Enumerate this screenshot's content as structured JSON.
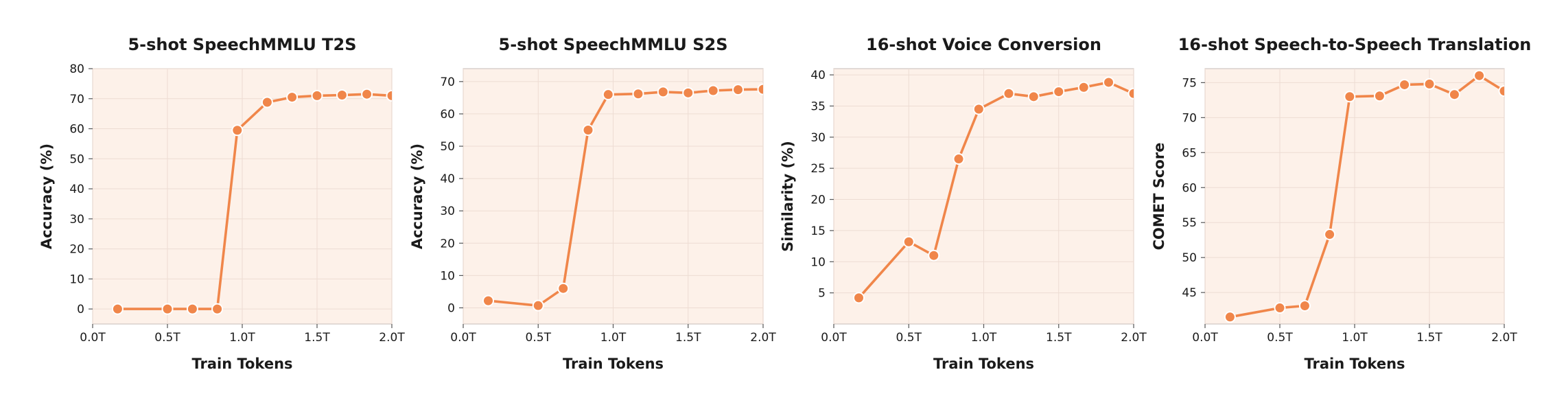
{
  "colors": {
    "series": "#f0864a",
    "plot_bg": "#fdf1e9"
  },
  "chart_data": [
    {
      "type": "line",
      "title": "5-shot SpeechMMLU T2S",
      "xlabel": "Train Tokens",
      "ylabel": "Accuracy (%)",
      "xlim": [
        0,
        2.0
      ],
      "ylim": [
        -5,
        80
      ],
      "xticks": [
        0,
        0.5,
        1.0,
        1.5,
        2.0
      ],
      "xtick_labels": [
        "0.0T",
        "0.5T",
        "1.0T",
        "1.5T",
        "2.0T"
      ],
      "yticks": [
        0,
        10,
        20,
        30,
        40,
        50,
        60,
        70,
        80
      ],
      "ytick_labels": [
        "0",
        "10",
        "20",
        "30",
        "40",
        "50",
        "60",
        "70",
        "80"
      ],
      "grid": true,
      "x": [
        0.167,
        0.5,
        0.667,
        0.833,
        0.967,
        1.167,
        1.333,
        1.5,
        1.667,
        1.833,
        2.0
      ],
      "y": [
        0,
        0,
        0,
        0,
        59.5,
        68.8,
        70.5,
        71.0,
        71.2,
        71.5,
        71.0
      ]
    },
    {
      "type": "line",
      "title": "5-shot SpeechMMLU S2S",
      "xlabel": "Train Tokens",
      "ylabel": "Accuracy (%)",
      "xlim": [
        0,
        2.0
      ],
      "ylim": [
        -5,
        74
      ],
      "xticks": [
        0,
        0.5,
        1.0,
        1.5,
        2.0
      ],
      "xtick_labels": [
        "0.0T",
        "0.5T",
        "1.0T",
        "1.5T",
        "2.0T"
      ],
      "yticks": [
        0,
        10,
        20,
        30,
        40,
        50,
        60,
        70
      ],
      "ytick_labels": [
        "0",
        "10",
        "20",
        "30",
        "40",
        "50",
        "60",
        "70"
      ],
      "grid": true,
      "x": [
        0.167,
        0.5,
        0.667,
        0.833,
        0.967,
        1.167,
        1.333,
        1.5,
        1.667,
        1.833,
        2.0
      ],
      "y": [
        2.2,
        0.7,
        6.0,
        55.0,
        66.0,
        66.2,
        66.8,
        66.5,
        67.2,
        67.5,
        67.6
      ]
    },
    {
      "type": "line",
      "title": "16-shot Voice Conversion",
      "xlabel": "Train Tokens",
      "ylabel": "Similarity (%)",
      "xlim": [
        0,
        2.0
      ],
      "ylim": [
        0,
        41
      ],
      "xticks": [
        0,
        0.5,
        1.0,
        1.5,
        2.0
      ],
      "xtick_labels": [
        "0.0T",
        "0.5T",
        "1.0T",
        "1.5T",
        "2.0T"
      ],
      "yticks": [
        5,
        10,
        15,
        20,
        25,
        30,
        35,
        40
      ],
      "ytick_labels": [
        "5",
        "10",
        "15",
        "20",
        "25",
        "30",
        "35",
        "40"
      ],
      "grid": true,
      "x": [
        0.167,
        0.5,
        0.667,
        0.833,
        0.967,
        1.167,
        1.333,
        1.5,
        1.667,
        1.833,
        2.0
      ],
      "y": [
        4.2,
        13.2,
        11.0,
        26.5,
        34.5,
        37.0,
        36.5,
        37.3,
        38.0,
        38.8,
        37.0
      ]
    },
    {
      "type": "line",
      "title": "16-shot Speech-to-Speech Translation",
      "xlabel": "Train Tokens",
      "ylabel": "COMET Score",
      "xlim": [
        0,
        2.0
      ],
      "ylim": [
        40.5,
        77
      ],
      "xticks": [
        0,
        0.5,
        1.0,
        1.5,
        2.0
      ],
      "xtick_labels": [
        "0.0T",
        "0.5T",
        "1.0T",
        "1.5T",
        "2.0T"
      ],
      "yticks": [
        45,
        50,
        55,
        60,
        65,
        70,
        75
      ],
      "ytick_labels": [
        "45",
        "50",
        "55",
        "60",
        "65",
        "70",
        "75"
      ],
      "grid": true,
      "x": [
        0.167,
        0.5,
        0.667,
        0.833,
        0.967,
        1.167,
        1.333,
        1.5,
        1.667,
        1.833,
        2.0
      ],
      "y": [
        41.5,
        42.8,
        43.1,
        53.3,
        73.0,
        73.1,
        74.7,
        74.8,
        73.3,
        76.0,
        73.8
      ]
    }
  ]
}
